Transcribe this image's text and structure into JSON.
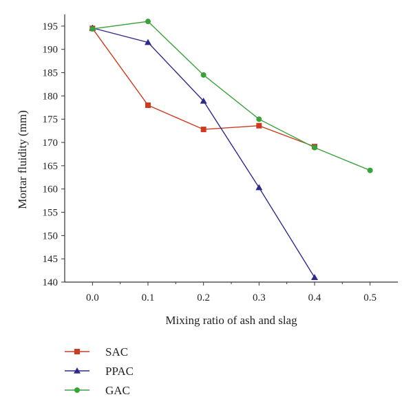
{
  "chart_data": {
    "type": "line",
    "xlabel": "Mixing ratio of ash and slag",
    "ylabel": "Mortar fluidity (mm)",
    "xlim": [
      -0.05,
      0.55
    ],
    "ylim": [
      140,
      197.5
    ],
    "xticks": [
      "0.0",
      "0.1",
      "0.2",
      "0.3",
      "0.4",
      "0.5"
    ],
    "yticks": [
      "140",
      "145",
      "150",
      "155",
      "160",
      "165",
      "170",
      "175",
      "180",
      "185",
      "190",
      "195"
    ],
    "grid": false,
    "legend_position": "bottom-left",
    "series": [
      {
        "name": "SAC",
        "color": "#cc3b1f",
        "marker": "square",
        "points": [
          [
            0.0,
            194.5
          ],
          [
            0.1,
            178.0
          ],
          [
            0.2,
            172.8
          ],
          [
            0.3,
            173.6
          ],
          [
            0.4,
            169.1
          ]
        ]
      },
      {
        "name": "PPAC",
        "color": "#2e2a8c",
        "marker": "triangle",
        "points": [
          [
            0.0,
            194.6
          ],
          [
            0.1,
            191.5
          ],
          [
            0.2,
            178.9
          ],
          [
            0.3,
            160.3
          ],
          [
            0.4,
            141.0
          ]
        ]
      },
      {
        "name": "GAC",
        "color": "#3aa23a",
        "marker": "circle",
        "points": [
          [
            0.0,
            194.4
          ],
          [
            0.1,
            196.0
          ],
          [
            0.2,
            184.5
          ],
          [
            0.3,
            175.0
          ],
          [
            0.4,
            168.9
          ],
          [
            0.5,
            164.0
          ]
        ]
      }
    ]
  }
}
